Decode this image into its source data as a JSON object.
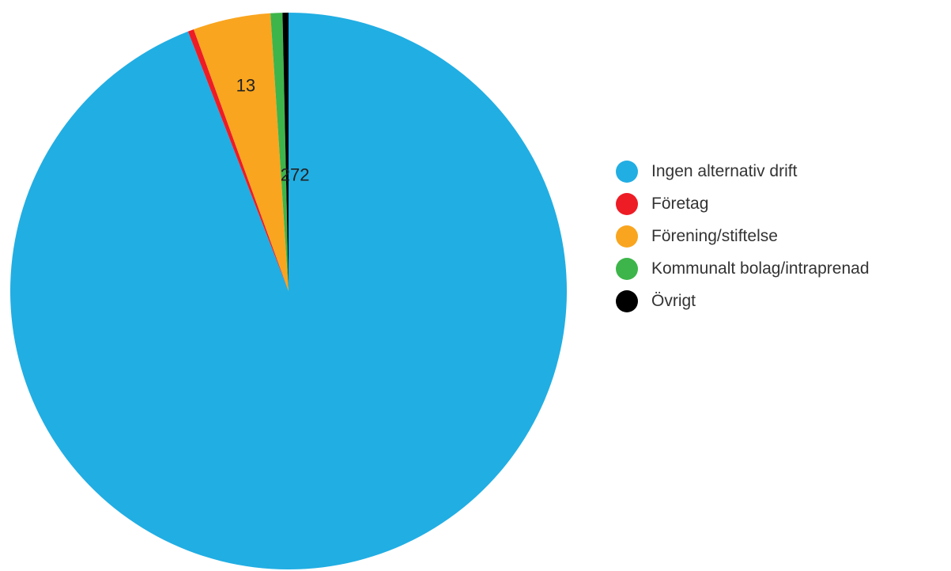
{
  "chart_data": {
    "type": "pie",
    "title": "",
    "series": [
      {
        "name": "Ingen alternativ drift",
        "value": 272,
        "color": "#21aee3",
        "label": "272"
      },
      {
        "name": "Företag",
        "value": 1,
        "color": "#ee1c25",
        "label": ""
      },
      {
        "name": "Förening/stiftelse",
        "value": 13,
        "color": "#f9a51f",
        "label": "13"
      },
      {
        "name": "Kommunalt bolag/intraprenad",
        "value": 2,
        "color": "#3db54a",
        "label": ""
      },
      {
        "name": "Övrigt",
        "value": 1,
        "color": "#000000",
        "label": ""
      }
    ],
    "legend_position": "right"
  }
}
